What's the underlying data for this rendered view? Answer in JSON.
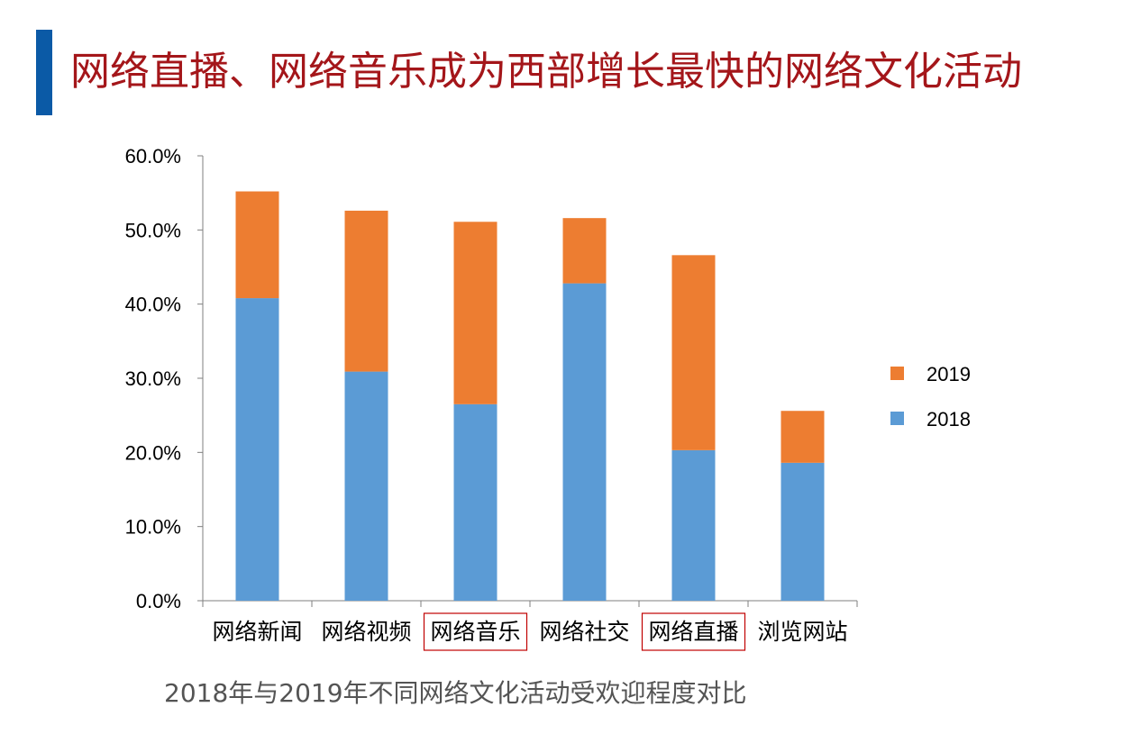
{
  "page": {
    "title": "网络直播、网络音乐成为西部增长最快的网络文化活动",
    "caption": "2018年与2019年不同网络文化活动受欢迎程度对比"
  },
  "colors": {
    "title_bar": "#0b5aa6",
    "title_text": "#a4161a",
    "series_2018": "#5b9bd5",
    "series_2019": "#ed7d31",
    "highlight_box": "#c00000",
    "axis": "#7f7f7f"
  },
  "chart_data": {
    "type": "bar",
    "stacked": true,
    "categories": [
      "网络新闻",
      "网络视频",
      "网络音乐",
      "网络社交",
      "网络直播",
      "浏览网站"
    ],
    "highlighted_categories": [
      "网络音乐",
      "网络直播"
    ],
    "series": [
      {
        "name": "2018",
        "values": [
          40.8,
          30.9,
          26.5,
          42.8,
          20.3,
          18.6
        ]
      },
      {
        "name": "2019",
        "values": [
          14.4,
          21.7,
          24.6,
          8.8,
          26.3,
          7.0
        ]
      }
    ],
    "y_ticks": [
      "0.0%",
      "10.0%",
      "20.0%",
      "30.0%",
      "40.0%",
      "50.0%",
      "60.0%"
    ],
    "ylim": [
      0,
      60
    ],
    "legend": [
      "2019",
      "2018"
    ],
    "legend_position": "right",
    "grid": false
  }
}
